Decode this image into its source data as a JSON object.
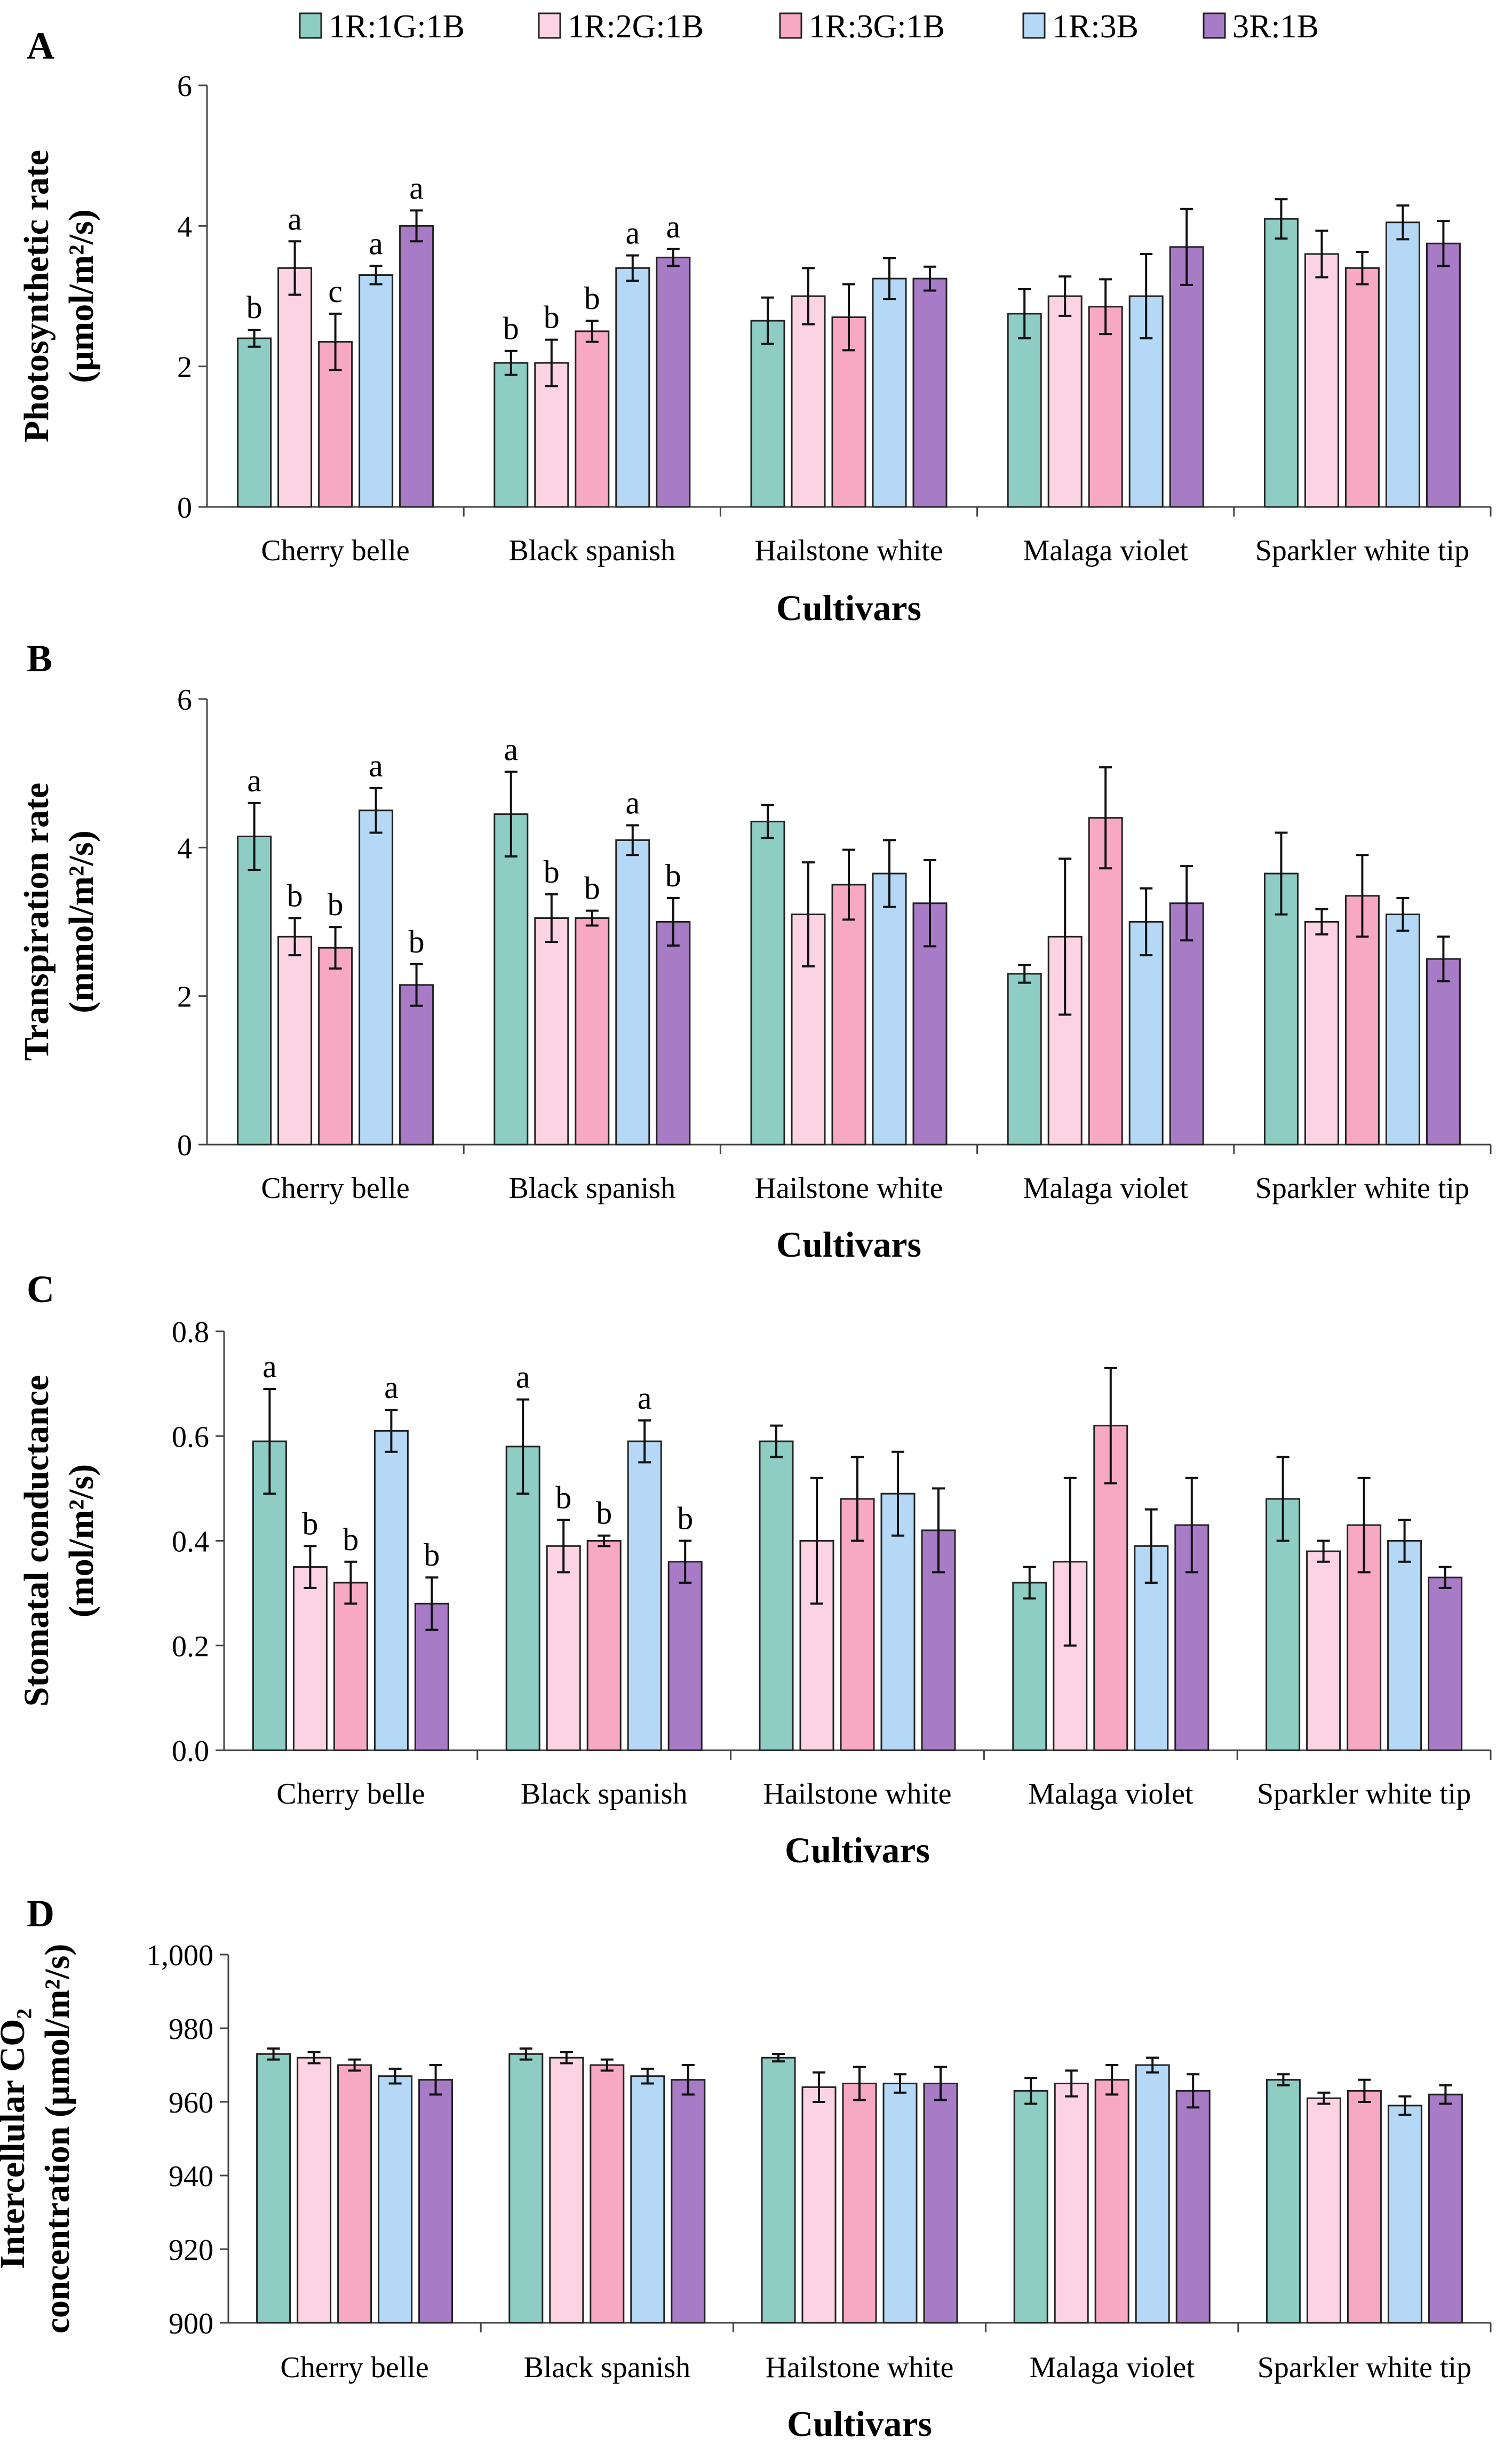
{
  "legend": [
    {
      "name": "1R:1G:1B",
      "color": "#8ecdc4"
    },
    {
      "name": "1R:2G:1B",
      "color": "#fbd3e3"
    },
    {
      "name": "1R:3G:1B",
      "color": "#f7a9c3"
    },
    {
      "name": "1R:3B",
      "color": "#b4d8f5"
    },
    {
      "name": "3R:1B",
      "color": "#a77bc6"
    }
  ],
  "chart_data": [
    {
      "type": "bar",
      "panel": "A",
      "ylabel": [
        "Photosynthetic rate",
        "(µmol/m²/s)"
      ],
      "xlabel": "Cultivars",
      "ylim": [
        0,
        6
      ],
      "yticks": [
        "0",
        "2",
        "4",
        "6"
      ],
      "categories": [
        "Cherry belle",
        "Black spanish",
        "Hailstone white",
        "Malaga violet",
        "Sparkler white tip"
      ],
      "series": [
        {
          "name": "1R:1G:1B",
          "values": [
            2.4,
            2.05,
            2.65,
            2.75,
            4.1
          ],
          "errors": [
            0.12,
            0.17,
            0.33,
            0.35,
            0.28
          ],
          "labels": [
            "b",
            "b",
            "",
            "",
            ""
          ]
        },
        {
          "name": "1R:2G:1B",
          "values": [
            3.4,
            2.05,
            3.0,
            3.0,
            3.6
          ],
          "errors": [
            0.38,
            0.33,
            0.4,
            0.28,
            0.33
          ],
          "labels": [
            "a",
            "b",
            "",
            "",
            ""
          ]
        },
        {
          "name": "1R:3G:1B",
          "values": [
            2.35,
            2.5,
            2.7,
            2.85,
            3.4
          ],
          "errors": [
            0.4,
            0.15,
            0.47,
            0.39,
            0.23
          ],
          "labels": [
            "c",
            "b",
            "",
            "",
            ""
          ]
        },
        {
          "name": "1R:3B",
          "values": [
            3.3,
            3.4,
            3.25,
            3.0,
            4.05
          ],
          "errors": [
            0.13,
            0.18,
            0.29,
            0.6,
            0.24
          ],
          "labels": [
            "a",
            "a",
            "",
            "",
            ""
          ]
        },
        {
          "name": "3R:1B",
          "values": [
            4.0,
            3.55,
            3.25,
            3.7,
            3.75
          ],
          "errors": [
            0.22,
            0.12,
            0.17,
            0.54,
            0.32
          ],
          "labels": [
            "a",
            "a",
            "",
            "",
            ""
          ]
        }
      ]
    },
    {
      "type": "bar",
      "panel": "B",
      "ylabel": [
        "Transpiration rate",
        "(mmol/m²/s)"
      ],
      "xlabel": "Cultivars",
      "ylim": [
        0,
        6
      ],
      "yticks": [
        "0",
        "2",
        "4",
        "6"
      ],
      "categories": [
        "Cherry belle",
        "Black spanish",
        "Hailstone white",
        "Malaga violet",
        "Sparkler white tip"
      ],
      "series": [
        {
          "name": "1R:1G:1B",
          "values": [
            4.15,
            4.45,
            4.35,
            2.3,
            3.65
          ],
          "errors": [
            0.45,
            0.57,
            0.22,
            0.12,
            0.55
          ],
          "labels": [
            "a",
            "a",
            "",
            "",
            ""
          ]
        },
        {
          "name": "1R:2G:1B",
          "values": [
            2.8,
            3.05,
            3.1,
            2.8,
            3.0
          ],
          "errors": [
            0.25,
            0.32,
            0.7,
            1.05,
            0.17
          ],
          "labels": [
            "b",
            "b",
            "",
            "",
            ""
          ]
        },
        {
          "name": "1R:3G:1B",
          "values": [
            2.65,
            3.05,
            3.5,
            4.4,
            3.35
          ],
          "errors": [
            0.28,
            0.1,
            0.47,
            0.68,
            0.55
          ],
          "labels": [
            "b",
            "b",
            "",
            "",
            ""
          ]
        },
        {
          "name": "1R:3B",
          "values": [
            4.5,
            4.1,
            3.65,
            3.0,
            3.1
          ],
          "errors": [
            0.3,
            0.2,
            0.45,
            0.45,
            0.22
          ],
          "labels": [
            "a",
            "a",
            "",
            "",
            ""
          ]
        },
        {
          "name": "3R:1B",
          "values": [
            2.15,
            3.0,
            3.25,
            3.25,
            2.5
          ],
          "errors": [
            0.28,
            0.32,
            0.58,
            0.5,
            0.3
          ],
          "labels": [
            "b",
            "b",
            "",
            "",
            ""
          ]
        }
      ]
    },
    {
      "type": "bar",
      "panel": "C",
      "ylabel": [
        "Stomatal conductance",
        "(mol/m²/s)"
      ],
      "xlabel": "Cultivars",
      "ylim": [
        0,
        0.8
      ],
      "yticks": [
        "0.0",
        "0.2",
        "0.4",
        "0.6",
        "0.8"
      ],
      "categories": [
        "Cherry belle",
        "Black spanish",
        "Hailstone white",
        "Malaga violet",
        "Sparkler white tip"
      ],
      "series": [
        {
          "name": "1R:1G:1B",
          "values": [
            0.59,
            0.58,
            0.59,
            0.32,
            0.48
          ],
          "errors": [
            0.1,
            0.09,
            0.03,
            0.03,
            0.08
          ],
          "labels": [
            "a",
            "a",
            "",
            "",
            ""
          ]
        },
        {
          "name": "1R:2G:1B",
          "values": [
            0.35,
            0.39,
            0.4,
            0.36,
            0.38
          ],
          "errors": [
            0.04,
            0.05,
            0.12,
            0.16,
            0.02
          ],
          "labels": [
            "b",
            "b",
            "",
            "",
            ""
          ]
        },
        {
          "name": "1R:3G:1B",
          "values": [
            0.32,
            0.4,
            0.48,
            0.62,
            0.43
          ],
          "errors": [
            0.04,
            0.01,
            0.08,
            0.11,
            0.09
          ],
          "labels": [
            "b",
            "b",
            "",
            "",
            ""
          ]
        },
        {
          "name": "1R:3B",
          "values": [
            0.61,
            0.59,
            0.49,
            0.39,
            0.4
          ],
          "errors": [
            0.04,
            0.04,
            0.08,
            0.07,
            0.04
          ],
          "labels": [
            "a",
            "a",
            "",
            "",
            ""
          ]
        },
        {
          "name": "3R:1B",
          "values": [
            0.28,
            0.36,
            0.42,
            0.43,
            0.33
          ],
          "errors": [
            0.05,
            0.04,
            0.08,
            0.09,
            0.02
          ],
          "labels": [
            "b",
            "b",
            "",
            "",
            ""
          ]
        }
      ]
    },
    {
      "type": "bar",
      "panel": "D",
      "ylabel": [
        "Intercellular CO₂",
        "concentration (µmol/m²/s)"
      ],
      "xlabel": "Cultivars",
      "ylim": [
        900,
        1000
      ],
      "yticks": [
        "900",
        "920",
        "940",
        "960",
        "980",
        "1,000"
      ],
      "categories": [
        "Cherry belle",
        "Black spanish",
        "Hailstone white",
        "Malaga violet",
        "Sparkler white tip"
      ],
      "series": [
        {
          "name": "1R:1G:1B",
          "values": [
            973,
            973,
            972,
            963,
            966
          ],
          "errors": [
            1.5,
            1.5,
            1.0,
            3.5,
            1.5
          ],
          "labels": [
            "",
            "",
            "",
            "",
            ""
          ]
        },
        {
          "name": "1R:2G:1B",
          "values": [
            972,
            972,
            964,
            965,
            961
          ],
          "errors": [
            1.5,
            1.5,
            4.0,
            3.5,
            1.5
          ],
          "labels": [
            "",
            "",
            "",
            "",
            ""
          ]
        },
        {
          "name": "1R:3G:1B",
          "values": [
            970,
            970,
            965,
            966,
            963
          ],
          "errors": [
            1.5,
            1.5,
            4.5,
            4.0,
            3.0
          ],
          "labels": [
            "",
            "",
            "",
            "",
            ""
          ]
        },
        {
          "name": "1R:3B",
          "values": [
            967,
            967,
            965,
            970,
            959
          ],
          "errors": [
            2.0,
            2.0,
            2.5,
            2.0,
            2.5
          ],
          "labels": [
            "",
            "",
            "",
            "",
            ""
          ]
        },
        {
          "name": "3R:1B",
          "values": [
            966,
            966,
            965,
            963,
            962
          ],
          "errors": [
            4.0,
            4.0,
            4.5,
            4.5,
            2.5
          ],
          "labels": [
            "",
            "",
            "",
            "",
            ""
          ]
        }
      ]
    }
  ]
}
